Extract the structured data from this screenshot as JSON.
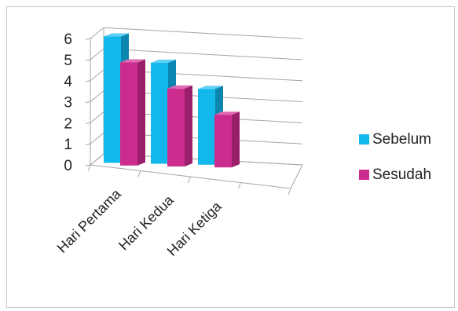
{
  "chart_data": {
    "type": "bar",
    "categories": [
      "Hari Pertama",
      "Hari Kedua",
      "Hari Ketiga"
    ],
    "series": [
      {
        "name": "Sebelum",
        "values": [
          6,
          4.8,
          3.6
        ]
      },
      {
        "name": "Sesudah",
        "values": [
          4.9,
          3.7,
          2.5
        ]
      }
    ],
    "yticks": [
      0,
      1,
      2,
      3,
      4,
      5,
      6
    ],
    "ylim": [
      0,
      6
    ],
    "grid": true,
    "legend_position": "right",
    "colors": {
      "Sebelum": {
        "front": "#12b7ec",
        "side": "#0c86b0",
        "top": "#5fd0f4"
      },
      "Sesudah": {
        "front": "#cc2c8e",
        "side": "#9a1f6b",
        "top": "#e069b2"
      },
      "grid": "#a6a6a6"
    }
  }
}
